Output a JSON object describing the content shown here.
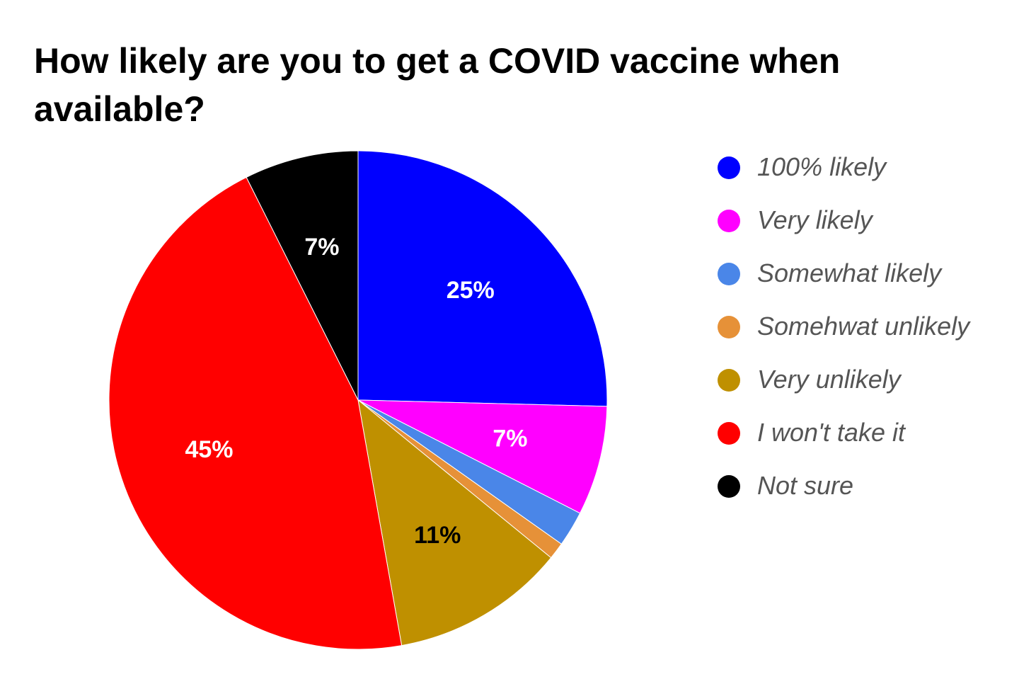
{
  "chart_data": {
    "type": "pie",
    "title": "How likely are you to get a COVID vaccine when available?",
    "start_angle": "12 o'clock",
    "direction": "clockwise",
    "legend_position": "right",
    "slices": [
      {
        "label": "100% likely",
        "value": 25.4,
        "display": "25%",
        "color": "#0000ff",
        "label_color": "#ffffff"
      },
      {
        "label": "Very likely",
        "value": 7.1,
        "display": "7%",
        "color": "#ff00ff",
        "label_color": "#ffffff"
      },
      {
        "label": "Somewhat likely",
        "value": 2.3,
        "display": "",
        "color": "#4a86e8",
        "label_color": "#ffffff"
      },
      {
        "label": "Somehwat unlikely",
        "value": 1.1,
        "display": "",
        "color": "#e69138",
        "label_color": "#ffffff"
      },
      {
        "label": "Very unlikely",
        "value": 11.3,
        "display": "11%",
        "color": "#bf9000",
        "label_color": "#000000"
      },
      {
        "label": "I won't take it",
        "value": 45.4,
        "display": "45%",
        "color": "#ff0000",
        "label_color": "#ffffff"
      },
      {
        "label": "Not sure",
        "value": 7.4,
        "display": "7%",
        "color": "#000000",
        "label_color": "#ffffff"
      }
    ]
  }
}
